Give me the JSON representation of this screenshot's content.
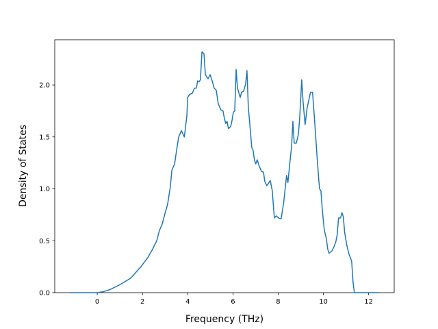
{
  "chart_data": {
    "type": "line",
    "x_label": "Frequency (THz)",
    "y_label": "Density of States",
    "x": [
      -1.2,
      0,
      0.27,
      0.57,
      1.03,
      1.48,
      1.93,
      2.24,
      2.45,
      2.63,
      2.75,
      2.87,
      2.99,
      3.11,
      3.23,
      3.3,
      3.42,
      3.5,
      3.6,
      3.72,
      3.85,
      3.96,
      4.0,
      4.08,
      4.2,
      4.3,
      4.38,
      4.44,
      4.5,
      4.56,
      4.63,
      4.72,
      4.78,
      4.9,
      4.99,
      5.08,
      5.17,
      5.26,
      5.35,
      5.47,
      5.56,
      5.62,
      5.68,
      5.74,
      5.8,
      5.9,
      5.96,
      6.02,
      6.08,
      6.14,
      6.2,
      6.32,
      6.38,
      6.47,
      6.56,
      6.62,
      6.68,
      6.74,
      6.83,
      6.89,
      6.95,
      7.01,
      7.07,
      7.16,
      7.26,
      7.35,
      7.41,
      7.5,
      7.59,
      7.65,
      7.74,
      7.83,
      7.92,
      8.01,
      8.13,
      8.25,
      8.37,
      8.43,
      8.52,
      8.59,
      8.65,
      8.71,
      8.8,
      8.89,
      8.95,
      9.04,
      9.1,
      9.19,
      9.28,
      9.37,
      9.43,
      9.52,
      9.61,
      9.7,
      9.79,
      9.83,
      9.89,
      9.95,
      10.04,
      10.13,
      10.19,
      10.25,
      10.37,
      10.46,
      10.55,
      10.61,
      10.67,
      10.76,
      10.82,
      10.88,
      10.94,
      11.03,
      11.12,
      11.25,
      11.31,
      11.37,
      12.45
    ],
    "series": [
      {
        "name": "DOS",
        "color": "#1f77b4",
        "values": [
          0,
          0,
          0.01,
          0.03,
          0.08,
          0.14,
          0.25,
          0.34,
          0.42,
          0.5,
          0.6,
          0.66,
          0.76,
          0.85,
          1.02,
          1.18,
          1.24,
          1.36,
          1.5,
          1.56,
          1.5,
          1.7,
          1.88,
          1.91,
          1.92,
          1.97,
          1.97,
          2.04,
          2.03,
          2.05,
          2.32,
          2.3,
          2.1,
          2.06,
          2.1,
          2.04,
          1.97,
          1.95,
          1.82,
          1.76,
          1.75,
          1.68,
          1.63,
          1.65,
          1.58,
          1.6,
          1.66,
          1.74,
          1.75,
          2.15,
          1.97,
          1.88,
          1.93,
          1.94,
          2.01,
          2.14,
          1.78,
          1.64,
          1.4,
          1.37,
          1.28,
          1.24,
          1.28,
          1.22,
          1.17,
          1.16,
          1.07,
          1.03,
          1.06,
          1.08,
          0.98,
          0.72,
          0.74,
          0.72,
          0.71,
          0.88,
          1.13,
          1.06,
          1.26,
          1.4,
          1.65,
          1.44,
          1.44,
          1.52,
          1.68,
          2.05,
          1.84,
          1.62,
          1.78,
          1.87,
          1.93,
          1.93,
          1.66,
          1.37,
          1.1,
          1.0,
          0.98,
          0.8,
          0.6,
          0.52,
          0.42,
          0.38,
          0.4,
          0.44,
          0.49,
          0.56,
          0.72,
          0.72,
          0.77,
          0.73,
          0.58,
          0.46,
          0.38,
          0.3,
          0.1,
          0,
          0
        ]
      }
    ],
    "xlim": [
      -1.88,
      13.13
    ],
    "xticks": [
      0,
      2,
      4,
      6,
      8,
      10,
      12
    ],
    "ylim": [
      0,
      2.436
    ],
    "yticks": [
      {
        "value": 0,
        "label": "0.0"
      },
      {
        "value": 0.5,
        "label": "0.5"
      },
      {
        "value": 1,
        "label": "1.0"
      },
      {
        "value": 1.5,
        "label": "1.5"
      },
      {
        "value": 2,
        "label": "2.0"
      }
    ]
  }
}
